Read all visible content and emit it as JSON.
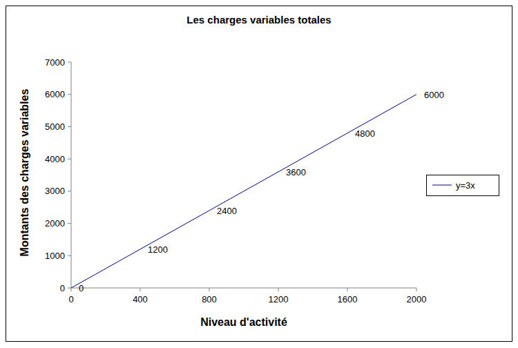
{
  "chart_data": {
    "type": "line",
    "title": "Les charges variables totales",
    "x_label": "Niveau d'activité",
    "y_label": "Montants des charges variables",
    "x": [
      0,
      400,
      800,
      1200,
      1600,
      2000
    ],
    "series": [
      {
        "name": "y=3x",
        "color": "#000080",
        "values": [
          0,
          1200,
          2400,
          3600,
          4800,
          6000
        ]
      }
    ],
    "xlim": [
      0,
      2000
    ],
    "xticks": [
      0,
      400,
      800,
      1200,
      1600,
      2000
    ],
    "ylim": [
      0,
      7000
    ],
    "yticks": [
      0,
      1000,
      2000,
      3000,
      4000,
      5000,
      6000,
      7000
    ],
    "grid": false,
    "legend": "right",
    "data_labels": true
  }
}
